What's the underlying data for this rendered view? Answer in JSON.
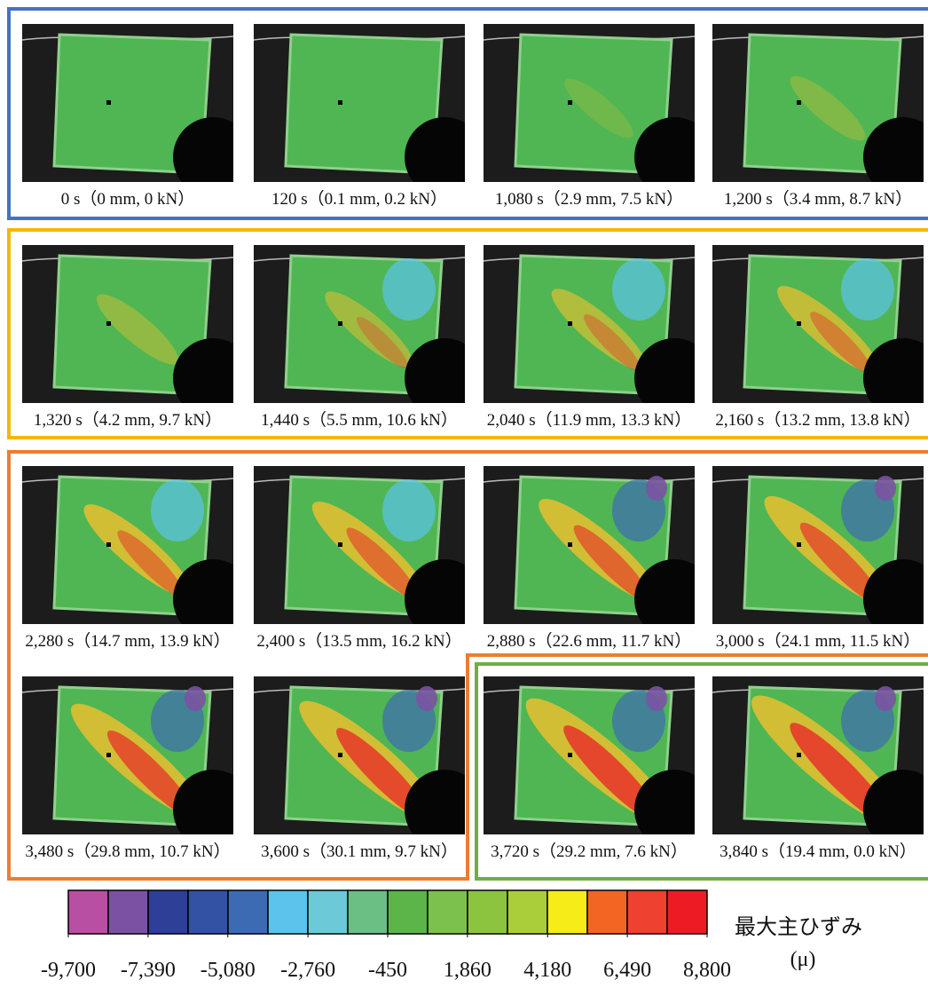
{
  "panels": [
    "0 s（0 mm, 0 kN）",
    "120 s（0.1 mm, 0.2 kN）",
    "1,080 s（2.9 mm, 7.5 kN）",
    "1,200 s（3.4 mm, 8.7 kN）",
    "1,320 s（4.2 mm, 9.7 kN）",
    "1,440 s（5.5 mm, 10.6 kN）",
    "2,040 s（11.9 mm, 13.3 kN）",
    "2,160 s（13.2 mm, 13.8 kN）",
    "2,280 s（14.7 mm, 13.9 kN）",
    "2,400 s（13.5 mm, 16.2 kN）",
    "2,880 s（22.6 mm, 11.7 kN）",
    "3,000 s（24.1 mm, 11.5 kN）",
    "3,480 s（29.8 mm, 10.7 kN）",
    "3,600 s（30.1 mm, 9.7 kN）",
    "3,720 s（29.2 mm, 7.6 kN）",
    "3,840 s（19.4 mm, 0.0 kN）"
  ],
  "colorbar": {
    "title": "最大主ひずみ",
    "unit": "(μ)",
    "colors": [
      "#b94fa3",
      "#7b52a3",
      "#2e3f97",
      "#3352a3",
      "#3d6bb3",
      "#5bc3ec",
      "#6bc9d8",
      "#6bbf84",
      "#5bb548",
      "#7cc04e",
      "#8cc43f",
      "#aacd3a",
      "#f6ec17",
      "#f26522",
      "#ee4130",
      "#ed1c24"
    ],
    "lim": [
      -9700,
      8800
    ],
    "ticks": [
      {
        "value": -9700,
        "label": "-9,700"
      },
      {
        "value": -7390,
        "label": "-7,390"
      },
      {
        "value": -5080,
        "label": "-5,080"
      },
      {
        "value": -2760,
        "label": "-2,760"
      },
      -450,
      {
        "value": 1860,
        "label": "1,860"
      },
      {
        "value": 4180,
        "label": "4,180"
      },
      {
        "value": 6490,
        "label": "6,490"
      },
      {
        "value": 8800,
        "label": "8,800"
      }
    ]
  }
}
